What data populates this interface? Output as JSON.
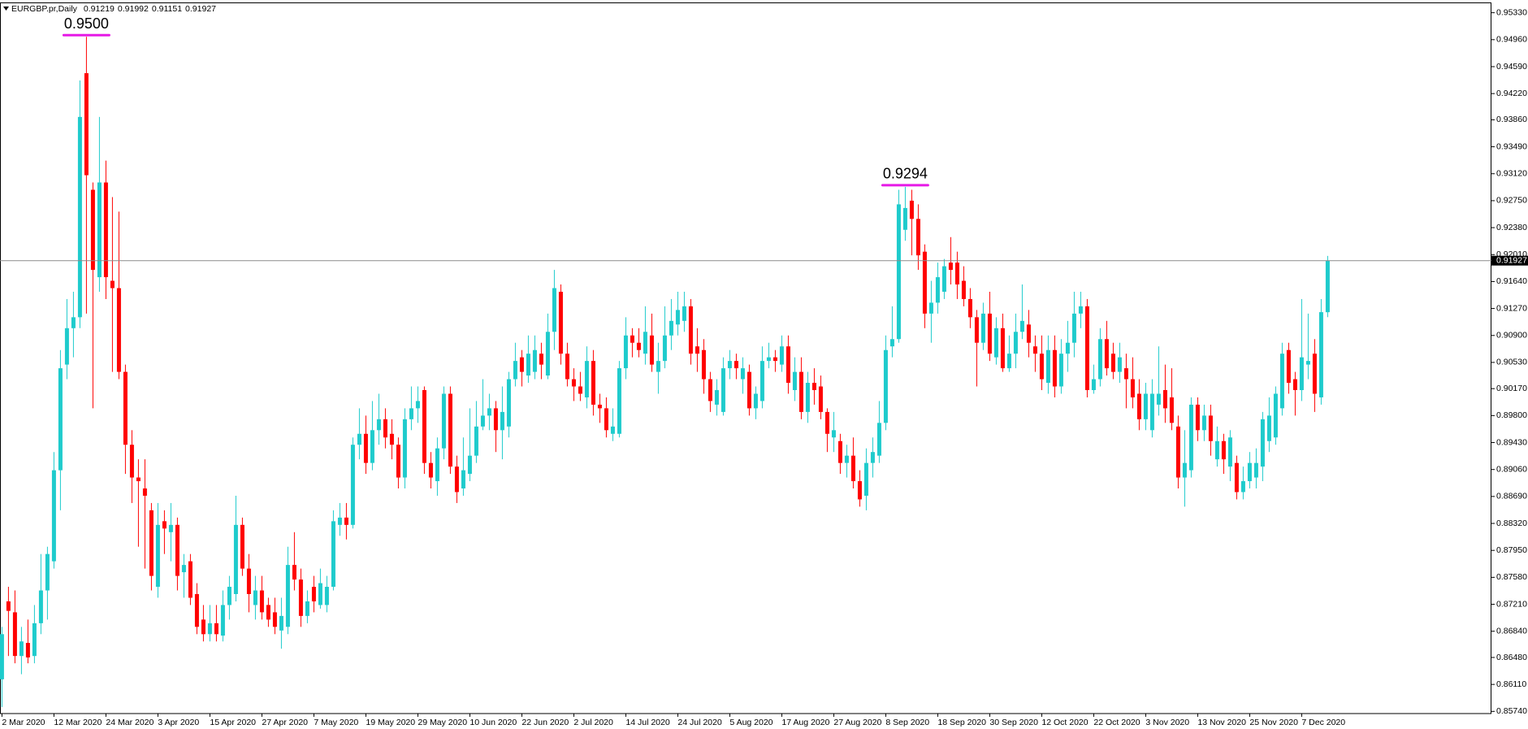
{
  "chart_data": {
    "type": "candlestick",
    "symbol": "EURGBP.pr,Daily",
    "up_color": "#1ecbcc",
    "down_color": "#ff0000",
    "ylim": [
      0.8571,
      0.9546
    ],
    "yticks": [
      {
        "value": 0.9533,
        "label": "0.95330"
      },
      {
        "value": 0.9496,
        "label": "0.94960"
      },
      {
        "value": 0.9459,
        "label": "0.94590"
      },
      {
        "value": 0.9422,
        "label": "0.94220"
      },
      {
        "value": 0.9386,
        "label": "0.93860"
      },
      {
        "value": 0.9349,
        "label": "0.93490"
      },
      {
        "value": 0.9312,
        "label": "0.93120"
      },
      {
        "value": 0.9275,
        "label": "0.92750"
      },
      {
        "value": 0.9238,
        "label": "0.92380"
      },
      {
        "value": 0.9201,
        "label": "0.92010"
      },
      {
        "value": 0.9164,
        "label": "0.91640"
      },
      {
        "value": 0.9127,
        "label": "0.91270"
      },
      {
        "value": 0.909,
        "label": "0.90900"
      },
      {
        "value": 0.9053,
        "label": "0.90530"
      },
      {
        "value": 0.9017,
        "label": "0.90170"
      },
      {
        "value": 0.898,
        "label": "0.89800"
      },
      {
        "value": 0.8943,
        "label": "0.89430"
      },
      {
        "value": 0.8906,
        "label": "0.89060"
      },
      {
        "value": 0.8869,
        "label": "0.88690"
      },
      {
        "value": 0.8832,
        "label": "0.88320"
      },
      {
        "value": 0.8795,
        "label": "0.87950"
      },
      {
        "value": 0.8758,
        "label": "0.87580"
      },
      {
        "value": 0.8721,
        "label": "0.87210"
      },
      {
        "value": 0.8684,
        "label": "0.86840"
      },
      {
        "value": 0.8648,
        "label": "0.86480"
      },
      {
        "value": 0.8611,
        "label": "0.86110"
      },
      {
        "value": 0.8574,
        "label": "0.85740"
      }
    ],
    "annotations": [
      {
        "value": 0.95,
        "label": "0.9500"
      },
      {
        "value": 0.9294,
        "label": "0.9294"
      }
    ],
    "categories": [
      "2 Mar 2020",
      null,
      null,
      null,
      null,
      null,
      null,
      null,
      "12 Mar 2020",
      null,
      null,
      null,
      null,
      null,
      null,
      null,
      "24 Mar 2020",
      null,
      null,
      null,
      null,
      null,
      null,
      null,
      "3 Apr 2020",
      null,
      null,
      null,
      null,
      null,
      null,
      null,
      "15 Apr 2020",
      null,
      null,
      null,
      null,
      null,
      null,
      null,
      "27 Apr 2020",
      null,
      null,
      null,
      null,
      null,
      null,
      null,
      "7 May 2020",
      null,
      null,
      null,
      null,
      null,
      null,
      null,
      "19 May 2020",
      null,
      null,
      null,
      null,
      null,
      null,
      null,
      "29 May 2020",
      null,
      null,
      null,
      null,
      null,
      null,
      null,
      "10 Jun 2020",
      null,
      null,
      null,
      null,
      null,
      null,
      null,
      "22 Jun 2020",
      null,
      null,
      null,
      null,
      null,
      null,
      null,
      "2 Jul 2020",
      null,
      null,
      null,
      null,
      null,
      null,
      null,
      "14 Jul 2020",
      null,
      null,
      null,
      null,
      null,
      null,
      null,
      "24 Jul 2020",
      null,
      null,
      null,
      null,
      null,
      null,
      null,
      "5 Aug 2020",
      null,
      null,
      null,
      null,
      null,
      null,
      null,
      "17 Aug 2020",
      null,
      null,
      null,
      null,
      null,
      null,
      null,
      "27 Aug 2020",
      null,
      null,
      null,
      null,
      null,
      null,
      null,
      "8 Sep 2020",
      null,
      null,
      null,
      null,
      null,
      null,
      null,
      "18 Sep 2020",
      null,
      null,
      null,
      null,
      null,
      null,
      null,
      "30 Sep 2020",
      null,
      null,
      null,
      null,
      null,
      null,
      null,
      "12 Oct 2020",
      null,
      null,
      null,
      null,
      null,
      null,
      null,
      "22 Oct 2020",
      null,
      null,
      null,
      null,
      null,
      null,
      null,
      "3 Nov 2020",
      null,
      null,
      null,
      null,
      null,
      null,
      null,
      "13 Nov 2020",
      null,
      null,
      null,
      null,
      null,
      null,
      null,
      "25 Nov 2020",
      null,
      null,
      null,
      null,
      null,
      null,
      null,
      "7 Dec 2020",
      null,
      null,
      null,
      null
    ],
    "open": [
      0.8618,
      0.8725,
      0.871,
      0.865,
      0.8668,
      0.865,
      0.8695,
      0.874,
      0.878,
      0.8905,
      0.905,
      0.91,
      0.9115,
      0.945,
      0.929,
      0.917,
      0.93,
      0.9165,
      0.9155,
      0.904,
      0.894,
      0.8895,
      0.888,
      0.885,
      0.8745,
      0.8835,
      0.882,
      0.883,
      0.8765,
      0.878,
      0.8735,
      0.87,
      0.868,
      0.8695,
      0.8678,
      0.872,
      0.8735,
      0.883,
      0.877,
      0.872,
      0.874,
      0.872,
      0.871,
      0.8685,
      0.869,
      0.8775,
      0.8755,
      0.8705,
      0.8745,
      0.872,
      0.872,
      0.8745,
      0.883,
      0.884,
      0.883,
      0.894,
      0.8955,
      0.8915,
      0.896,
      0.8975,
      0.8955,
      0.894,
      0.8895,
      0.8975,
      0.899,
      0.9015,
      0.8915,
      0.889,
      0.8935,
      0.901,
      0.891,
      0.888,
      0.89,
      0.8925,
      0.8965,
      0.898,
      0.899,
      0.896,
      0.8965,
      0.903,
      0.906,
      0.9035,
      0.904,
      0.9065,
      0.9035,
      0.9095,
      0.915,
      0.9065,
      0.903,
      0.902,
      0.9005,
      0.9055,
      0.8995,
      0.899,
      0.8955,
      0.8955,
      0.9045,
      0.909,
      0.908,
      0.9065,
      0.909,
      0.904,
      0.9055,
      0.909,
      0.9105,
      0.911,
      0.913,
      0.9075,
      0.907,
      0.903,
      0.8995,
      0.8985,
      0.9045,
      0.9055,
      0.903,
      0.904,
      0.899,
      0.9,
      0.9055,
      0.906,
      0.905,
      0.9075,
      0.9015,
      0.904,
      0.8985,
      0.9025,
      0.902,
      0.8985,
      0.895,
      0.8945,
      0.8915,
      0.8925,
      0.889,
      0.887,
      0.8915,
      0.8925,
      0.897,
      0.9075,
      0.9085,
      0.9235,
      0.9275,
      0.925,
      0.9205,
      0.912,
      0.9135,
      0.915,
      0.919,
      0.919,
      0.9165,
      0.914,
      0.9115,
      0.908,
      0.912,
      0.906,
      0.91,
      0.9045,
      0.9065,
      0.9095,
      0.9105,
      0.9075,
      0.9065,
      0.9025,
      0.907,
      0.902,
      0.9065,
      0.908,
      0.912,
      0.913,
      0.9015,
      0.903,
      0.9085,
      0.9065,
      0.904,
      0.9045,
      0.903,
      0.901,
      0.8975,
      0.896,
      0.8995,
      0.9015,
      0.9005,
      0.8965,
      0.8895,
      0.8905,
      0.8995,
      0.896,
      0.898,
      0.892,
      0.8945,
      0.891,
      0.8915,
      0.8875,
      0.889,
      0.8895,
      0.891,
      0.8945,
      0.895,
      0.899,
      0.907,
      0.903,
      0.9015,
      0.905,
      0.9065,
      0.9005,
      0.91219
    ],
    "high": [
      0.869,
      0.8745,
      0.874,
      0.869,
      0.87,
      0.872,
      0.879,
      0.88,
      0.893,
      0.907,
      0.914,
      0.915,
      0.944,
      0.95,
      0.93,
      0.939,
      0.933,
      0.928,
      0.926,
      0.905,
      0.896,
      0.892,
      0.892,
      0.886,
      0.886,
      0.885,
      0.886,
      0.884,
      0.879,
      0.879,
      0.875,
      0.872,
      0.872,
      0.872,
      0.874,
      0.876,
      0.887,
      0.884,
      0.879,
      0.876,
      0.876,
      0.873,
      0.873,
      0.873,
      0.88,
      0.882,
      0.877,
      0.874,
      0.876,
      0.877,
      0.876,
      0.885,
      0.886,
      0.886,
      0.895,
      0.899,
      0.898,
      0.9,
      0.901,
      0.899,
      0.8975,
      0.895,
      0.899,
      0.902,
      0.902,
      0.902,
      0.893,
      0.895,
      0.902,
      0.902,
      0.8925,
      0.895,
      0.899,
      0.9,
      0.903,
      0.901,
      0.9,
      0.902,
      0.904,
      0.908,
      0.907,
      0.909,
      0.909,
      0.908,
      0.912,
      0.918,
      0.916,
      0.908,
      0.9045,
      0.904,
      0.9075,
      0.907,
      0.901,
      0.9005,
      0.899,
      0.9055,
      0.9115,
      0.91,
      0.91,
      0.913,
      0.912,
      0.908,
      0.913,
      0.914,
      0.915,
      0.915,
      0.914,
      0.91,
      0.9085,
      0.904,
      0.903,
      0.906,
      0.907,
      0.9065,
      0.906,
      0.905,
      0.902,
      0.9075,
      0.908,
      0.907,
      0.909,
      0.909,
      0.906,
      0.906,
      0.904,
      0.9045,
      0.9035,
      0.899,
      0.8985,
      0.8955,
      0.894,
      0.895,
      0.8905,
      0.8935,
      0.895,
      0.9,
      0.909,
      0.913,
      0.929,
      0.9294,
      0.929,
      0.927,
      0.9215,
      0.9165,
      0.919,
      0.9195,
      0.9225,
      0.9205,
      0.9185,
      0.9155,
      0.9125,
      0.9135,
      0.915,
      0.9115,
      0.912,
      0.909,
      0.912,
      0.916,
      0.9125,
      0.909,
      0.909,
      0.909,
      0.909,
      0.9085,
      0.911,
      0.915,
      0.915,
      0.914,
      0.905,
      0.91,
      0.911,
      0.908,
      0.908,
      0.9065,
      0.906,
      0.903,
      0.9025,
      0.903,
      0.9075,
      0.905,
      0.9045,
      0.898,
      0.896,
      0.9005,
      0.9005,
      0.8995,
      0.8995,
      0.8965,
      0.8955,
      0.896,
      0.8925,
      0.891,
      0.893,
      0.8935,
      0.8985,
      0.9005,
      0.902,
      0.908,
      0.908,
      0.904,
      0.914,
      0.912,
      0.9085,
      0.914,
      0.91992
    ],
    "low": [
      0.858,
      0.865,
      0.864,
      0.8625,
      0.864,
      0.864,
      0.868,
      0.87,
      0.877,
      0.885,
      0.903,
      0.906,
      0.91,
      0.912,
      0.899,
      0.915,
      0.914,
      0.904,
      0.903,
      0.89,
      0.886,
      0.88,
      0.877,
      0.874,
      0.873,
      0.879,
      0.878,
      0.874,
      0.873,
      0.872,
      0.868,
      0.867,
      0.867,
      0.867,
      0.867,
      0.87,
      0.8725,
      0.876,
      0.871,
      0.87,
      0.87,
      0.869,
      0.868,
      0.866,
      0.868,
      0.874,
      0.869,
      0.8695,
      0.871,
      0.8715,
      0.871,
      0.874,
      0.8815,
      0.881,
      0.8825,
      0.892,
      0.89,
      0.8905,
      0.894,
      0.8935,
      0.892,
      0.888,
      0.888,
      0.896,
      0.897,
      0.89,
      0.888,
      0.887,
      0.892,
      0.89,
      0.886,
      0.887,
      0.889,
      0.8915,
      0.896,
      0.896,
      0.893,
      0.892,
      0.895,
      0.902,
      0.902,
      0.9025,
      0.903,
      0.903,
      0.903,
      0.907,
      0.905,
      0.902,
      0.9,
      0.9,
      0.899,
      0.898,
      0.897,
      0.895,
      0.8945,
      0.895,
      0.903,
      0.906,
      0.906,
      0.905,
      0.904,
      0.901,
      0.9045,
      0.907,
      0.909,
      0.9095,
      0.905,
      0.904,
      0.901,
      0.8985,
      0.898,
      0.898,
      0.903,
      0.903,
      0.901,
      0.898,
      0.8975,
      0.899,
      0.9045,
      0.904,
      0.904,
      0.901,
      0.9,
      0.8975,
      0.897,
      0.8995,
      0.8975,
      0.893,
      0.893,
      0.89,
      0.8895,
      0.888,
      0.8855,
      0.885,
      0.8895,
      0.8915,
      0.896,
      0.906,
      0.908,
      0.922,
      0.92,
      0.918,
      0.91,
      0.908,
      0.912,
      0.914,
      0.916,
      0.914,
      0.913,
      0.91,
      0.902,
      0.907,
      0.9055,
      0.905,
      0.904,
      0.904,
      0.9045,
      0.9085,
      0.906,
      0.904,
      0.9015,
      0.901,
      0.9005,
      0.901,
      0.904,
      0.906,
      0.91,
      0.9005,
      0.901,
      0.902,
      0.9035,
      0.903,
      0.9025,
      0.899,
      0.899,
      0.896,
      0.896,
      0.895,
      0.898,
      0.897,
      0.896,
      0.888,
      0.8855,
      0.8895,
      0.8945,
      0.8945,
      0.8925,
      0.891,
      0.89,
      0.889,
      0.8865,
      0.8865,
      0.888,
      0.888,
      0.889,
      0.893,
      0.894,
      0.898,
      0.901,
      0.898,
      0.9,
      0.903,
      0.8985,
      0.8995,
      0.91151
    ],
    "close": [
      0.868,
      0.8712,
      0.865,
      0.867,
      0.8648,
      0.8695,
      0.874,
      0.879,
      0.8905,
      0.9045,
      0.91,
      0.9115,
      0.939,
      0.931,
      0.918,
      0.93,
      0.917,
      0.9155,
      0.904,
      0.894,
      0.8895,
      0.889,
      0.887,
      0.876,
      0.883,
      0.8825,
      0.883,
      0.876,
      0.8775,
      0.873,
      0.869,
      0.868,
      0.8695,
      0.868,
      0.872,
      0.8745,
      0.883,
      0.877,
      0.8735,
      0.874,
      0.871,
      0.87,
      0.869,
      0.8705,
      0.8775,
      0.8755,
      0.8705,
      0.8725,
      0.8725,
      0.875,
      0.8745,
      0.8835,
      0.884,
      0.883,
      0.894,
      0.8955,
      0.8915,
      0.896,
      0.8975,
      0.895,
      0.894,
      0.8895,
      0.8975,
      0.899,
      0.9,
      0.8915,
      0.8895,
      0.8935,
      0.901,
      0.891,
      0.8875,
      0.8905,
      0.8925,
      0.8965,
      0.898,
      0.899,
      0.896,
      0.8985,
      0.903,
      0.9055,
      0.904,
      0.9065,
      0.907,
      0.905,
      0.9095,
      0.9155,
      0.9065,
      0.903,
      0.902,
      0.901,
      0.9055,
      0.8995,
      0.899,
      0.896,
      0.8965,
      0.9045,
      0.909,
      0.908,
      0.907,
      0.9095,
      0.905,
      0.9055,
      0.909,
      0.911,
      0.9125,
      0.913,
      0.9065,
      0.9065,
      0.903,
      0.9,
      0.9015,
      0.9045,
      0.9055,
      0.9045,
      0.9045,
      0.899,
      0.901,
      0.9055,
      0.906,
      0.9055,
      0.9075,
      0.9025,
      0.904,
      0.8985,
      0.9025,
      0.9015,
      0.8985,
      0.8955,
      0.896,
      0.8915,
      0.8925,
      0.889,
      0.8865,
      0.8915,
      0.893,
      0.897,
      0.907,
      0.9085,
      0.927,
      0.9265,
      0.925,
      0.92,
      0.912,
      0.9135,
      0.917,
      0.9185,
      0.918,
      0.916,
      0.914,
      0.9115,
      0.908,
      0.912,
      0.9065,
      0.91,
      0.9045,
      0.9065,
      0.9095,
      0.911,
      0.908,
      0.9065,
      0.903,
      0.907,
      0.902,
      0.9065,
      0.908,
      0.912,
      0.913,
      0.9015,
      0.903,
      0.9085,
      0.9045,
      0.904,
      0.906,
      0.903,
      0.9005,
      0.8975,
      0.901,
      0.901,
      0.901,
      0.899,
      0.897,
      0.8895,
      0.8915,
      0.8995,
      0.896,
      0.898,
      0.8945,
      0.8945,
      0.892,
      0.895,
      0.8875,
      0.889,
      0.8915,
      0.8915,
      0.8975,
      0.898,
      0.901,
      0.9065,
      0.9025,
      0.9015,
      0.906,
      0.9055,
      0.901,
      0.9122,
      0.91927
    ]
  }
}
